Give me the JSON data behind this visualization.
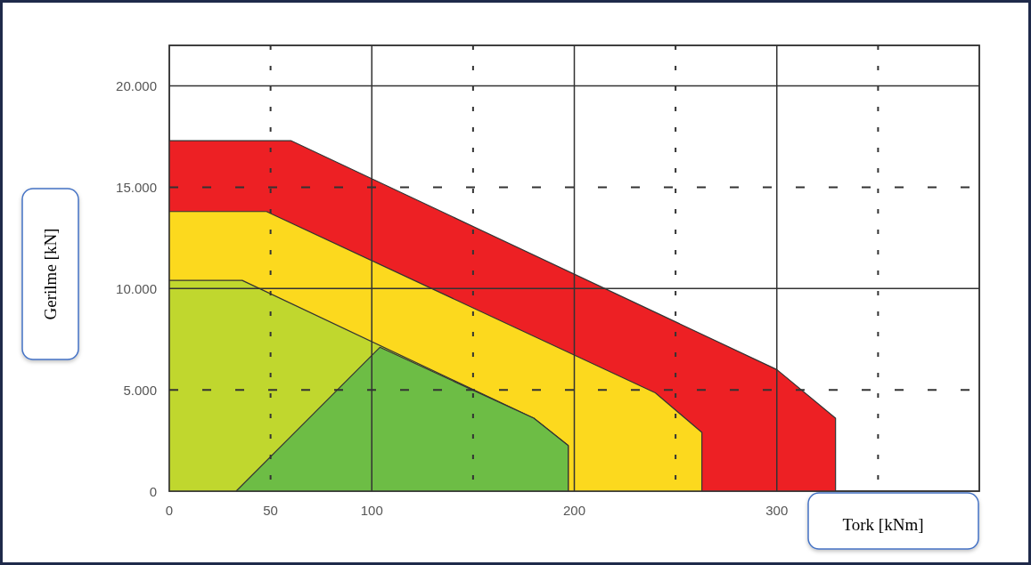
{
  "chart_data": {
    "type": "area",
    "xlabel": "Tork [kNm]",
    "ylabel": "Gerilme [kN]",
    "xlim": [
      0,
      400
    ],
    "xticks": [
      0,
      50,
      100,
      {
        "value": 150,
        "label": null
      },
      200,
      {
        "value": 250,
        "label": null
      },
      300,
      {
        "value": 350,
        "label": null
      }
    ],
    "ylim": [
      0,
      22000
    ],
    "yticks": [
      0,
      {
        "value": 5000,
        "label": "5.000"
      },
      {
        "value": 10000,
        "label": "10.000"
      },
      {
        "value": 15000,
        "label": "15.000"
      },
      {
        "value": 20000,
        "label": "20.000"
      }
    ],
    "grid": true,
    "series": [
      {
        "color": "#ed2024",
        "x": [
          0,
          60,
          300,
          329,
          329
        ],
        "values": [
          17300,
          17300,
          6000,
          3600,
          0
        ]
      },
      {
        "color": "#fcd91e",
        "x": [
          0,
          48,
          240,
          263,
          263
        ],
        "values": [
          13800,
          13800,
          4850,
          2900,
          0
        ]
      },
      {
        "color": "#c0d72e",
        "x": [
          0,
          36,
          180,
          197,
          197
        ],
        "values": [
          10400,
          10400,
          3600,
          2250,
          0
        ]
      },
      {
        "color": "#6dbd45",
        "x": [
          33,
          104,
          180,
          197,
          197
        ],
        "values": [
          0,
          7100,
          3600,
          2250,
          0
        ]
      }
    ]
  }
}
